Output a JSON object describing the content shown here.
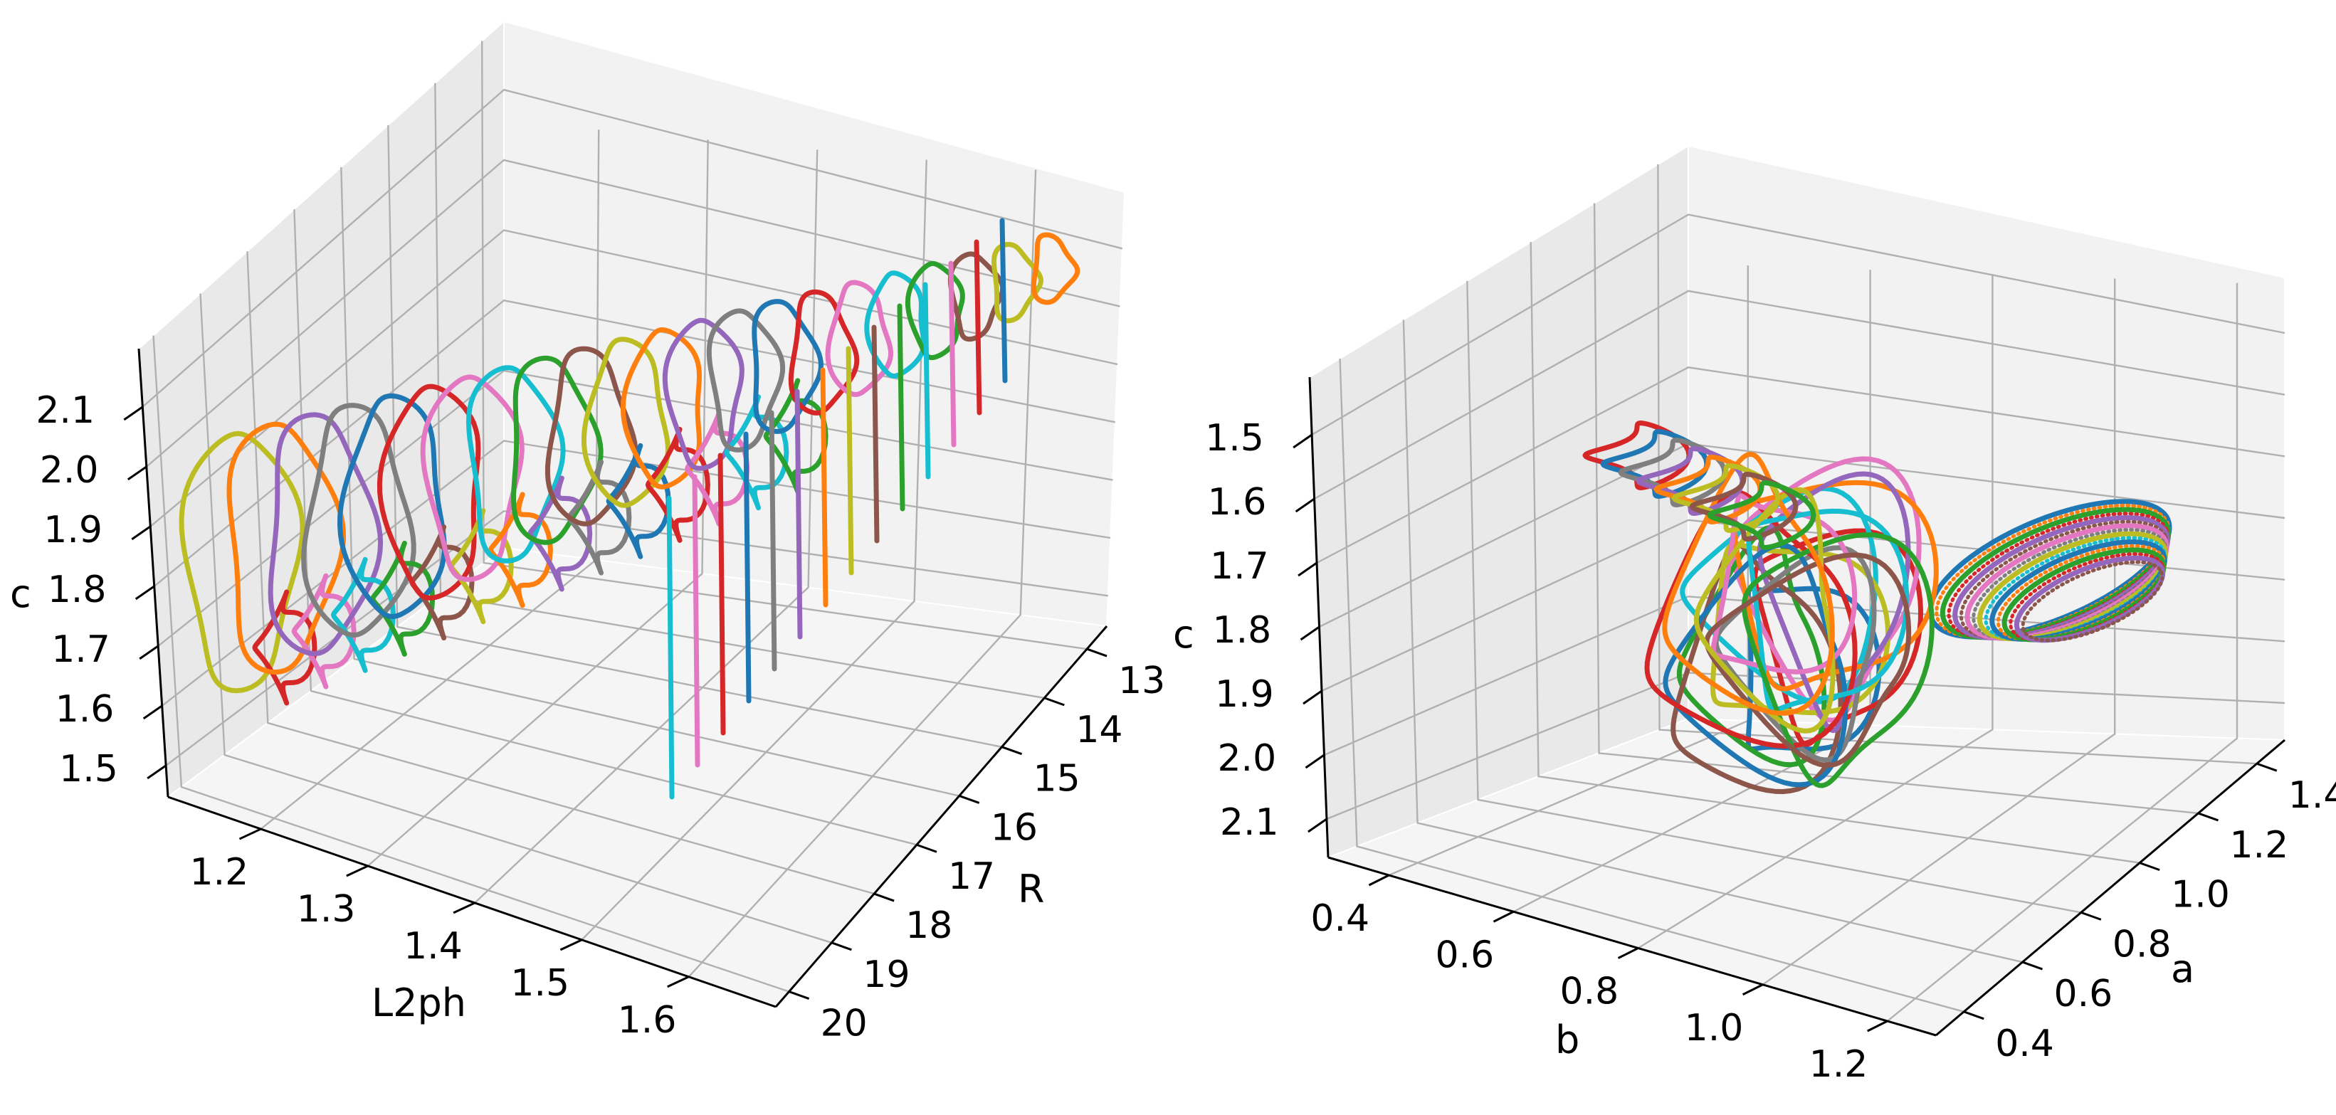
{
  "palette": [
    "#1f77b4",
    "#ff7f0e",
    "#2ca02c",
    "#d62728",
    "#9467bd",
    "#8c564b",
    "#e377c2",
    "#7f7f7f",
    "#bcbd22",
    "#17becf"
  ],
  "chart_data": [
    {
      "type": "line3d",
      "panel": "left",
      "title": "",
      "xlabel": "L2ph",
      "ylabel": "R",
      "zlabel": "c",
      "xlim": [
        1.17,
        1.6
      ],
      "ylim": [
        12.5,
        20.2
      ],
      "zlim": [
        1.48,
        2.17
      ],
      "x_ticks": [
        "1.2",
        "1.3",
        "1.4",
        "1.5",
        "1.6"
      ],
      "y_ticks": [
        "13",
        "14",
        "15",
        "16",
        "17",
        "18",
        "19",
        "20"
      ],
      "z_ticks": [
        "1.5",
        "1.6",
        "1.7",
        "1.8",
        "1.9",
        "2.0",
        "2.1"
      ],
      "grid": true,
      "series_count": 40,
      "description_note": ""
    },
    {
      "type": "line3d",
      "panel": "right",
      "title": "",
      "xlabel": "b",
      "ylabel": "a",
      "zlabel": "c",
      "xlim": [
        0.28,
        1.32
      ],
      "ylim": [
        0.33,
        1.48
      ],
      "zlim": [
        1.45,
        2.16
      ],
      "x_ticks": [
        "0.4",
        "0.6",
        "0.8",
        "1.0",
        "1.2"
      ],
      "y_ticks": [
        "0.4",
        "0.6",
        "0.8",
        "1.0",
        "1.2",
        "1.4"
      ],
      "z_ticks": [
        "1.5",
        "1.6",
        "1.7",
        "1.8",
        "1.9",
        "2.0",
        "2.1"
      ],
      "z_inverted": true,
      "grid": true
    }
  ]
}
